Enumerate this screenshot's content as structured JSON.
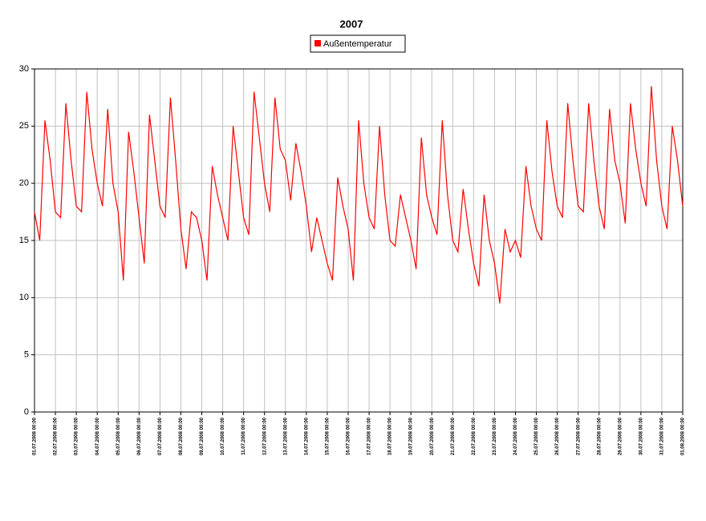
{
  "chart_data": {
    "type": "line",
    "title": "2007",
    "x": [
      "01.07.2008 00:00",
      "01.07.2008 06:00",
      "01.07.2008 12:00",
      "01.07.2008 18:00",
      "02.07.2008 00:00",
      "02.07.2008 06:00",
      "02.07.2008 12:00",
      "02.07.2008 18:00",
      "03.07.2008 00:00",
      "03.07.2008 06:00",
      "03.07.2008 12:00",
      "03.07.2008 18:00",
      "04.07.2008 00:00",
      "04.07.2008 06:00",
      "04.07.2008 12:00",
      "04.07.2008 18:00",
      "05.07.2008 00:00",
      "05.07.2008 06:00",
      "05.07.2008 12:00",
      "05.07.2008 18:00",
      "06.07.2008 00:00",
      "06.07.2008 06:00",
      "06.07.2008 12:00",
      "06.07.2008 18:00",
      "07.07.2008 00:00",
      "07.07.2008 06:00",
      "07.07.2008 12:00",
      "07.07.2008 18:00",
      "08.07.2008 00:00",
      "08.07.2008 06:00",
      "08.07.2008 12:00",
      "08.07.2008 18:00",
      "09.07.2008 00:00",
      "09.07.2008 06:00",
      "09.07.2008 12:00",
      "09.07.2008 18:00",
      "10.07.2008 00:00",
      "10.07.2008 06:00",
      "10.07.2008 12:00",
      "10.07.2008 18:00",
      "11.07.2008 00:00",
      "11.07.2008 06:00",
      "11.07.2008 12:00",
      "11.07.2008 18:00",
      "12.07.2008 00:00",
      "12.07.2008 06:00",
      "12.07.2008 12:00",
      "12.07.2008 18:00",
      "13.07.2008 00:00",
      "13.07.2008 06:00",
      "13.07.2008 12:00",
      "13.07.2008 18:00",
      "14.07.2008 00:00",
      "14.07.2008 06:00",
      "14.07.2008 12:00",
      "14.07.2008 18:00",
      "15.07.2008 00:00",
      "15.07.2008 06:00",
      "15.07.2008 12:00",
      "15.07.2008 18:00",
      "16.07.2008 00:00",
      "16.07.2008 06:00",
      "16.07.2008 12:00",
      "16.07.2008 18:00",
      "17.07.2008 00:00",
      "17.07.2008 06:00",
      "17.07.2008 12:00",
      "17.07.2008 18:00",
      "18.07.2008 00:00",
      "18.07.2008 06:00",
      "18.07.2008 12:00",
      "18.07.2008 18:00",
      "19.07.2008 00:00",
      "19.07.2008 06:00",
      "19.07.2008 12:00",
      "19.07.2008 18:00",
      "20.07.2008 00:00",
      "20.07.2008 06:00",
      "20.07.2008 12:00",
      "20.07.2008 18:00",
      "21.07.2008 00:00",
      "21.07.2008 06:00",
      "21.07.2008 12:00",
      "21.07.2008 18:00",
      "22.07.2008 00:00",
      "22.07.2008 06:00",
      "22.07.2008 12:00",
      "22.07.2008 18:00",
      "23.07.2008 00:00",
      "23.07.2008 06:00",
      "23.07.2008 12:00",
      "23.07.2008 18:00",
      "24.07.2008 00:00",
      "24.07.2008 06:00",
      "24.07.2008 12:00",
      "24.07.2008 18:00",
      "25.07.2008 00:00",
      "25.07.2008 06:00",
      "25.07.2008 12:00",
      "25.07.2008 18:00",
      "26.07.2008 00:00",
      "26.07.2008 06:00",
      "26.07.2008 12:00",
      "26.07.2008 18:00",
      "27.07.2008 00:00",
      "27.07.2008 06:00",
      "27.07.2008 12:00",
      "27.07.2008 18:00",
      "28.07.2008 00:00",
      "28.07.2008 06:00",
      "28.07.2008 12:00",
      "28.07.2008 18:00",
      "29.07.2008 00:00",
      "29.07.2008 06:00",
      "29.07.2008 12:00",
      "29.07.2008 18:00",
      "30.07.2008 00:00",
      "30.07.2008 06:00",
      "30.07.2008 12:00",
      "30.07.2008 18:00",
      "31.07.2008 00:00",
      "31.07.2008 06:00",
      "31.07.2008 12:00",
      "31.07.2008 18:00",
      "01.08.2008 00:00"
    ],
    "series": [
      {
        "name": "Außentemperatur",
        "color": "#ff0000",
        "values": [
          17.5,
          15,
          25.5,
          22,
          17.5,
          17,
          27,
          22,
          18,
          17.5,
          28,
          23,
          20,
          18,
          26.5,
          20,
          17.5,
          11.5,
          24.5,
          21,
          17,
          13,
          26,
          22,
          18,
          17,
          27.5,
          22,
          16,
          12.5,
          17.5,
          17,
          15,
          11.5,
          21.5,
          19,
          17,
          15,
          25,
          21,
          17,
          15.5,
          28,
          24,
          20,
          17.5,
          27.5,
          23,
          22,
          18.5,
          23.5,
          21,
          18,
          14,
          17,
          15,
          13,
          11.5,
          20.5,
          18,
          16,
          11.5,
          25.5,
          20,
          17,
          16,
          25,
          19,
          15,
          14.5,
          19,
          17,
          15,
          12.5,
          24,
          19,
          17,
          15.5,
          25.5,
          19,
          15,
          14,
          19.5,
          16,
          13,
          11,
          19,
          15,
          13,
          9.5,
          16,
          14,
          15,
          13.5,
          21.5,
          18,
          16,
          15,
          25.5,
          21,
          18,
          17,
          27,
          22,
          18,
          17.5,
          27,
          22,
          18,
          16,
          26.5,
          22,
          20,
          16.5,
          27,
          23,
          20,
          18,
          28.5,
          22,
          18,
          16,
          25,
          22,
          18
        ]
      }
    ],
    "xlim": [
      "01.07.2008 00:00",
      "01.08.2008 00:00"
    ],
    "xticks": [
      "01.07.2008 00:00",
      "02.07.2008 00:00",
      "03.07.2008 00:00",
      "04.07.2008 00:00",
      "05.07.2008 00:00",
      "06.07.2008 00:00",
      "07.07.2008 00:00",
      "08.07.2008 00:00",
      "09.07.2008 00:00",
      "10.07.2008 00:00",
      "11.07.2008 00:00",
      "12.07.2008 00:00",
      "13.07.2008 00:00",
      "14.07.2008 00:00",
      "15.07.2008 00:00",
      "16.07.2008 00:00",
      "17.07.2008 00:00",
      "18.07.2008 00:00",
      "19.07.2008 00:00",
      "20.07.2008 00:00",
      "21.07.2008 00:00",
      "22.07.2008 00:00",
      "23.07.2008 00:00",
      "24.07.2008 00:00",
      "25.07.2008 00:00",
      "26.07.2008 00:00",
      "27.07.2008 00:00",
      "28.07.2008 00:00",
      "29.07.2008 00:00",
      "30.07.2008 00:00",
      "31.07.2008 00:00",
      "01.08.2008 00:00"
    ],
    "ylim": [
      0,
      30
    ],
    "yticks": [
      0,
      5,
      10,
      15,
      20,
      25,
      30
    ],
    "grid": true,
    "legend": "top"
  }
}
